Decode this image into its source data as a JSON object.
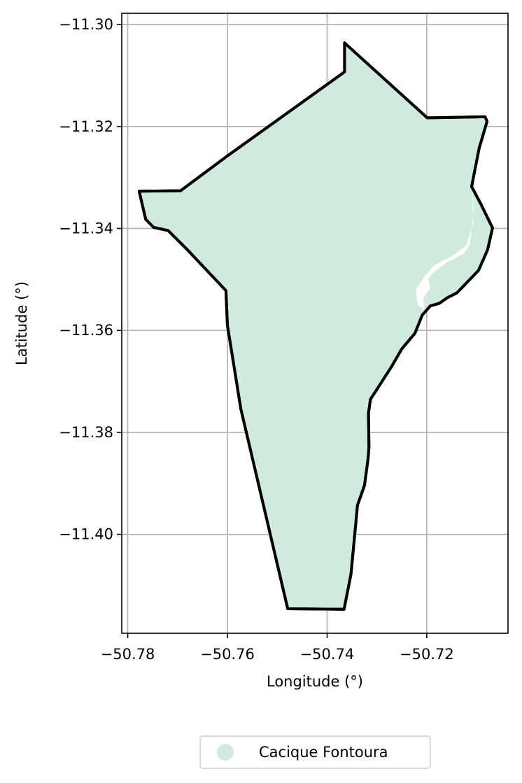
{
  "chart_data": {
    "type": "map",
    "xlabel": "Longitude (°)",
    "ylabel": "Latitude (°)",
    "xlim": [
      -50.7812,
      -50.7037
    ],
    "ylim": [
      -11.4194,
      -11.2978
    ],
    "xticks": [
      -50.78,
      -50.76,
      -50.74,
      -50.72
    ],
    "xtick_labels": [
      "−50.78",
      "−50.76",
      "−50.74",
      "−50.72"
    ],
    "yticks": [
      -11.3,
      -11.32,
      -11.34,
      -11.36,
      -11.38,
      -11.4
    ],
    "ytick_labels": [
      "−11.30",
      "−11.32",
      "−11.34",
      "−11.36",
      "−11.38",
      "−11.40"
    ],
    "grid": true,
    "legend_placement": "bottom-center",
    "region": {
      "name": "Cacique Fontoura",
      "fill_color": "#d0ebde",
      "edge_color": "#000000",
      "boundary": [
        [
          -50.7365,
          -11.3036
        ],
        [
          -50.7365,
          -11.3093
        ],
        [
          -50.7599,
          -11.3257
        ],
        [
          -50.7694,
          -11.3326
        ],
        [
          -50.7777,
          -11.3327
        ],
        [
          -50.7764,
          -11.3382
        ],
        [
          -50.7748,
          -11.3398
        ],
        [
          -50.7719,
          -11.3404
        ],
        [
          -50.7681,
          -11.3441
        ],
        [
          -50.7603,
          -11.3522
        ],
        [
          -50.76,
          -11.359
        ],
        [
          -50.7573,
          -11.3754
        ],
        [
          -50.7479,
          -11.4146
        ],
        [
          -50.7366,
          -11.4147
        ],
        [
          -50.7352,
          -11.4078
        ],
        [
          -50.7339,
          -11.3943
        ],
        [
          -50.7325,
          -11.3904
        ],
        [
          -50.7318,
          -11.3853
        ],
        [
          -50.7316,
          -11.383
        ],
        [
          -50.7317,
          -11.3762
        ],
        [
          -50.7313,
          -11.3735
        ],
        [
          -50.7299,
          -11.3714
        ],
        [
          -50.727,
          -11.367
        ],
        [
          -50.725,
          -11.3636
        ],
        [
          -50.7224,
          -11.3606
        ],
        [
          -50.7209,
          -11.357
        ],
        [
          -50.7193,
          -11.3552
        ],
        [
          -50.7175,
          -11.3547
        ],
        [
          -50.7159,
          -11.3536
        ],
        [
          -50.7139,
          -11.3526
        ],
        [
          -50.7096,
          -11.3482
        ],
        [
          -50.7078,
          -11.3442
        ],
        [
          -50.7068,
          -11.3399
        ],
        [
          -50.7092,
          -11.3351
        ],
        [
          -50.711,
          -11.3318
        ],
        [
          -50.7103,
          -11.3283
        ],
        [
          -50.7095,
          -11.3243
        ],
        [
          -50.7079,
          -11.319
        ],
        [
          -50.7083,
          -11.3181
        ],
        [
          -50.7199,
          -11.3183
        ],
        [
          -50.7365,
          -11.3036
        ]
      ],
      "gap": [
        [
          -50.7108,
          -11.3325
        ],
        [
          -50.7107,
          -11.339
        ],
        [
          -50.712,
          -11.3433
        ],
        [
          -50.715,
          -11.3455
        ],
        [
          -50.7185,
          -11.3472
        ],
        [
          -50.7205,
          -11.3495
        ],
        [
          -50.7222,
          -11.352
        ],
        [
          -50.7218,
          -11.355
        ],
        [
          -50.7205,
          -11.356
        ],
        [
          -50.7207,
          -11.3535
        ],
        [
          -50.7193,
          -11.3518
        ],
        [
          -50.7197,
          -11.3498
        ],
        [
          -50.7183,
          -11.3483
        ],
        [
          -50.716,
          -11.3467
        ],
        [
          -50.7126,
          -11.345
        ],
        [
          -50.7113,
          -11.343
        ],
        [
          -50.7106,
          -11.336
        ],
        [
          -50.7108,
          -11.3325
        ]
      ]
    }
  },
  "legend": {
    "items": [
      {
        "label": "Cacique Fontoura",
        "color": "#d0ebde"
      }
    ]
  }
}
